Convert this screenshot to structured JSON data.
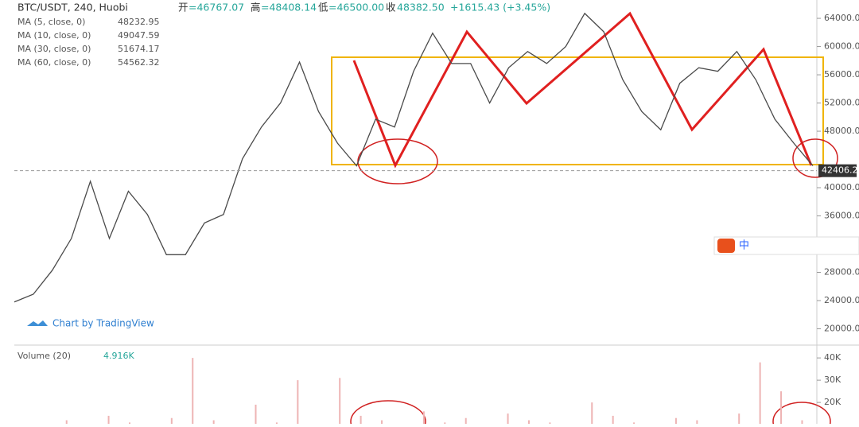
{
  "header": {
    "symbol": "BTC/USDT, 240, Huobi",
    "open_label": "开",
    "open": "=46767.07",
    "high_label": "高",
    "high": "=48408.14",
    "low_label": "低",
    "low": "=46500.00",
    "close_label": "收",
    "close": "48382.50",
    "change": "+1615.43 (+3.45%)"
  },
  "legend": [
    {
      "name": "MA (5, close, 0)",
      "value": "48232.95",
      "color": "#d500d5"
    },
    {
      "name": "MA (10, close, 0)",
      "value": "49047.59",
      "color": "#2962ff"
    },
    {
      "name": "MA (30, close, 0)",
      "value": "51674.17",
      "color": "#00b050"
    },
    {
      "name": "MA (60, close, 0)",
      "value": "54562.32",
      "color": "#c2185b"
    }
  ],
  "volume_legend": {
    "name": "Volume (20)",
    "value": "4.916K"
  },
  "watermark": "Chart by TradingView",
  "ime": "中",
  "chart_data": [
    {
      "type": "line",
      "color": "#4a4a4a",
      "values": [
        23800,
        24900,
        28300,
        32800,
        40900,
        32800,
        39500,
        36200,
        30500,
        30500,
        35000,
        36200,
        44100,
        48600,
        52000,
        57800,
        50800,
        46300,
        43100,
        49700,
        48600,
        56500,
        61900,
        57600,
        57600,
        52000,
        57000,
        59300,
        57600,
        60000,
        64700,
        62100,
        55300,
        50800,
        48200,
        54800,
        57000,
        56500,
        59300,
        55300,
        49700,
        46300,
        43100
      ],
      "ylim": [
        17800,
        66600
      ],
      "last_value": 42406.21,
      "yticks": [
        {
          "value": 20000,
          "label": "20000.00"
        },
        {
          "value": 24000,
          "label": "24000.00"
        },
        {
          "value": 28000,
          "label": "28000.00"
        },
        {
          "value": 36000,
          "label": "36000.00"
        },
        {
          "value": 40000,
          "label": "40000.00"
        },
        {
          "value": 48000,
          "label": "48000.00"
        },
        {
          "value": 52000,
          "label": "52000.00"
        },
        {
          "value": 56000,
          "label": "56000.00"
        },
        {
          "value": 60000,
          "label": "60000.00"
        },
        {
          "value": 64000,
          "label": "64000.00"
        }
      ]
    },
    {
      "type": "bar",
      "color": "#eeb4b4",
      "values": [
        8000,
        9000,
        12000,
        8000,
        14000,
        11000,
        9000,
        13000,
        40000,
        12000,
        9000,
        19000,
        11000,
        30000,
        9000,
        31000,
        14000,
        12000,
        9000,
        16000,
        11000,
        13000,
        10000,
        15000,
        12000,
        11000,
        9000,
        20000,
        14000,
        11000,
        9000,
        13000,
        12000,
        10000,
        15000,
        38000,
        25000,
        12000
      ],
      "ylim": [
        10400,
        45400
      ],
      "yticks": [
        {
          "value": 20000,
          "label": "20K"
        },
        {
          "value": 30000,
          "label": "30K"
        },
        {
          "value": 40000,
          "label": "40K"
        }
      ]
    }
  ]
}
